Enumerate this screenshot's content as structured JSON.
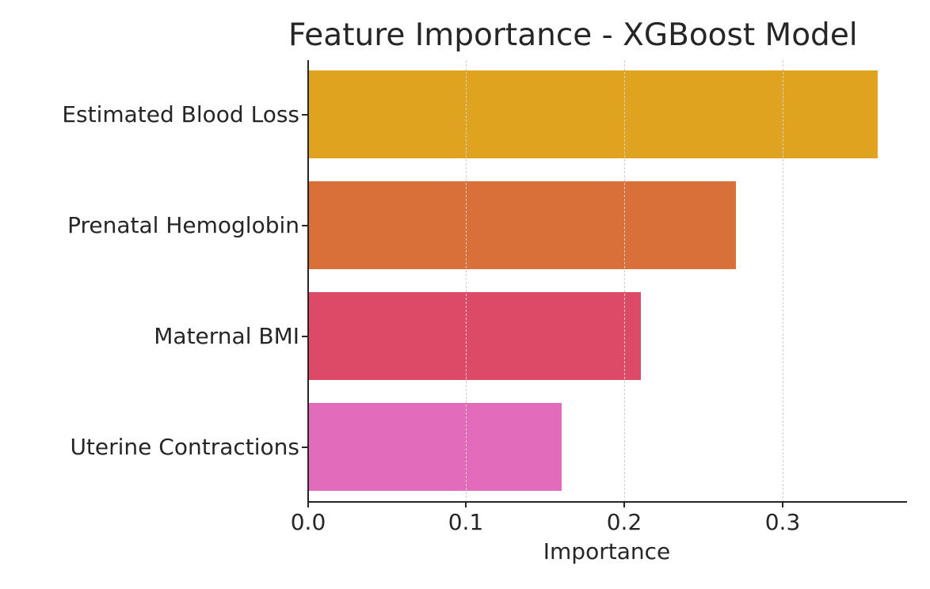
{
  "chart_data": {
    "type": "bar",
    "orientation": "horizontal",
    "title": "Feature Importance - XGBoost Model",
    "xlabel": "Importance",
    "ylabel": "",
    "categories": [
      "Estimated Blood Loss",
      "Prenatal Hemoglobin",
      "Maternal BMI",
      "Uterine Contractions"
    ],
    "values": [
      0.36,
      0.27,
      0.21,
      0.16
    ],
    "colors": [
      "#DFA320",
      "#D9703A",
      "#DC4A67",
      "#E26BBB"
    ],
    "xlim": [
      0.0,
      0.378
    ],
    "xticks": [
      "0.0",
      "0.1",
      "0.2",
      "0.3"
    ],
    "grid": {
      "x": true,
      "y": false,
      "style": "dashed"
    },
    "legend": null
  }
}
